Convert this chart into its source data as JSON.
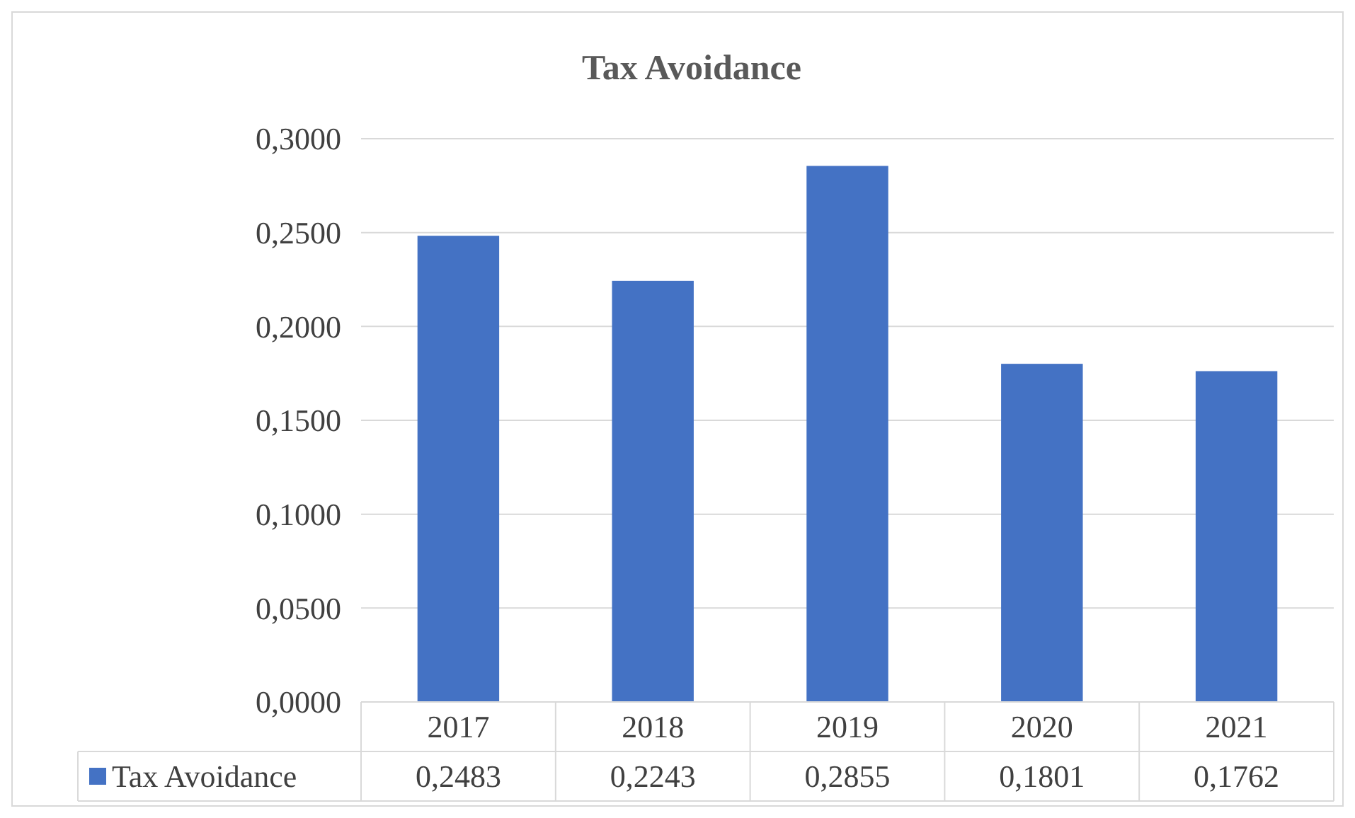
{
  "chart_data": {
    "type": "bar",
    "title": "Tax Avoidance",
    "categories": [
      "2017",
      "2018",
      "2019",
      "2020",
      "2021"
    ],
    "series": [
      {
        "name": "Tax Avoidance",
        "color": "#4472c4",
        "values": [
          0.2483,
          0.2243,
          0.2855,
          0.1801,
          0.1762
        ],
        "value_labels": [
          "0,2483",
          "0,2243",
          "0,2855",
          "0,1801",
          "0,1762"
        ]
      }
    ],
    "ylim": [
      0,
      0.3
    ],
    "yticks": [
      {
        "value": 0,
        "label": "0,0000"
      },
      {
        "value": 0.05,
        "label": "0,0500"
      },
      {
        "value": 0.1,
        "label": "0,1000"
      },
      {
        "value": 0.15,
        "label": "0,1500"
      },
      {
        "value": 0.2,
        "label": "0,2000"
      },
      {
        "value": 0.25,
        "label": "0,2500"
      },
      {
        "value": 0.3,
        "label": "0,3000"
      }
    ],
    "grid": "y",
    "legend": "bottom"
  }
}
